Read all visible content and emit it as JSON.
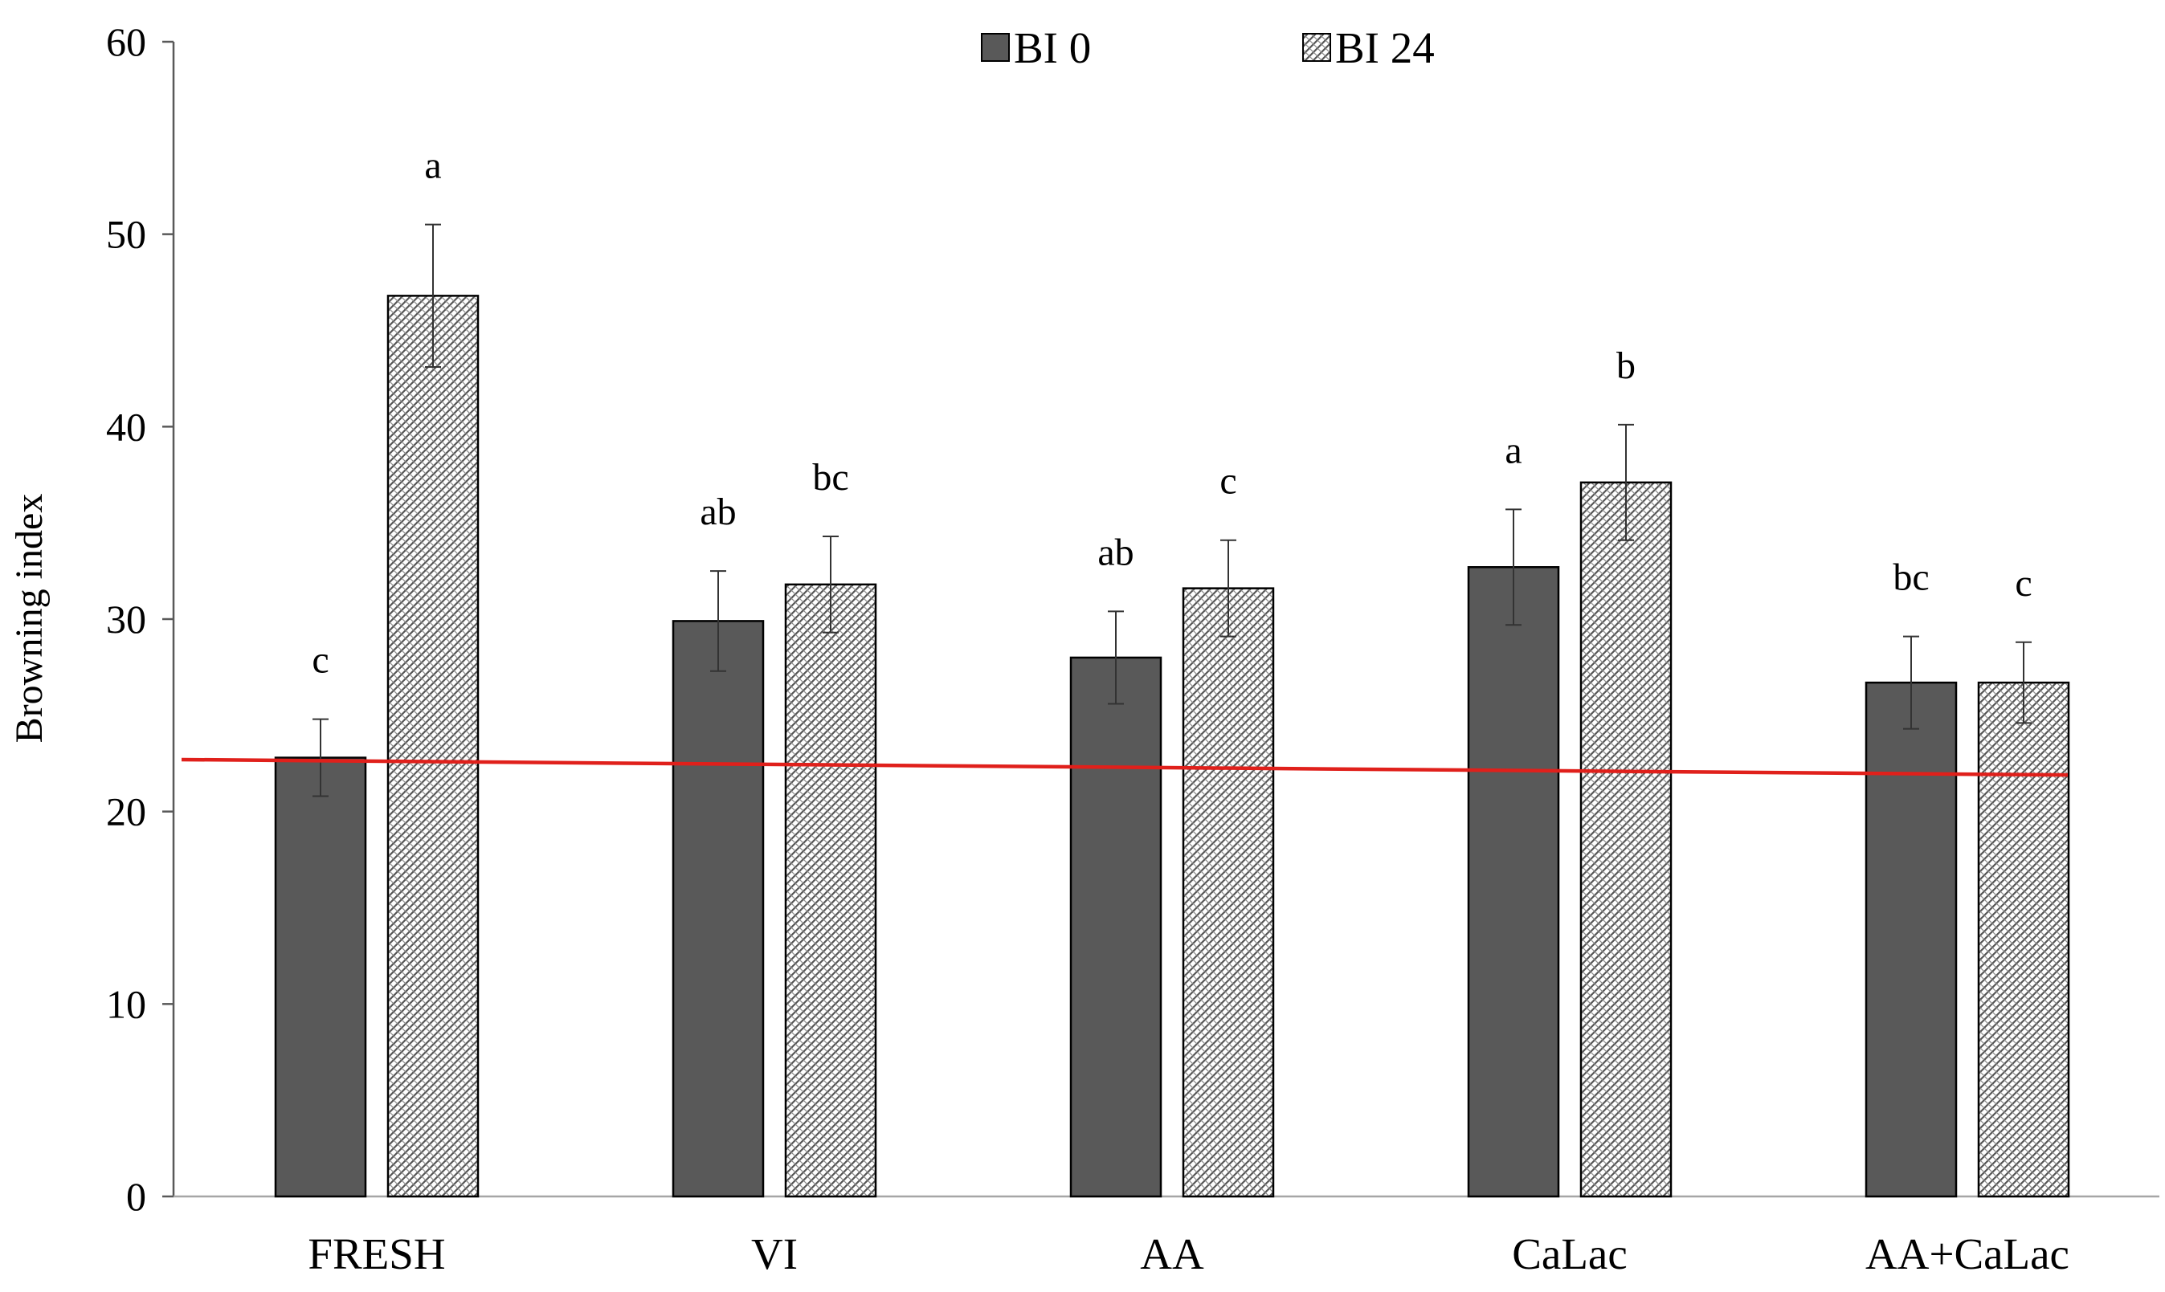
{
  "chart_data": {
    "type": "bar",
    "title": "",
    "xlabel": "",
    "ylabel": "Browning  index",
    "ylim": [
      0,
      60
    ],
    "yticks": [
      0,
      10,
      20,
      30,
      40,
      50,
      60
    ],
    "grid": false,
    "legend_position": "top-center",
    "categories": [
      "FRESH",
      "VI",
      "AA",
      "CaLac",
      "AA+CaLac"
    ],
    "series": [
      {
        "name": "BI 0",
        "color": "#595959",
        "fill": "solid",
        "values": [
          22.8,
          29.9,
          28.0,
          32.7,
          26.7
        ],
        "errors": [
          2.0,
          2.6,
          2.4,
          3.0,
          2.4
        ],
        "significance_labels": [
          "c",
          "ab",
          "ab",
          "a",
          "bc"
        ]
      },
      {
        "name": "BI 24",
        "color": "#555555",
        "fill": "crosshatch",
        "values": [
          46.8,
          31.8,
          31.6,
          37.1,
          26.7
        ],
        "errors": [
          3.7,
          2.5,
          2.5,
          3.0,
          2.1
        ],
        "significance_labels": [
          "a",
          "bc",
          "c",
          "b",
          "c"
        ]
      }
    ],
    "reference_line": {
      "color": "#e0201b",
      "y_start": 22.7,
      "y_end": 21.9
    }
  }
}
